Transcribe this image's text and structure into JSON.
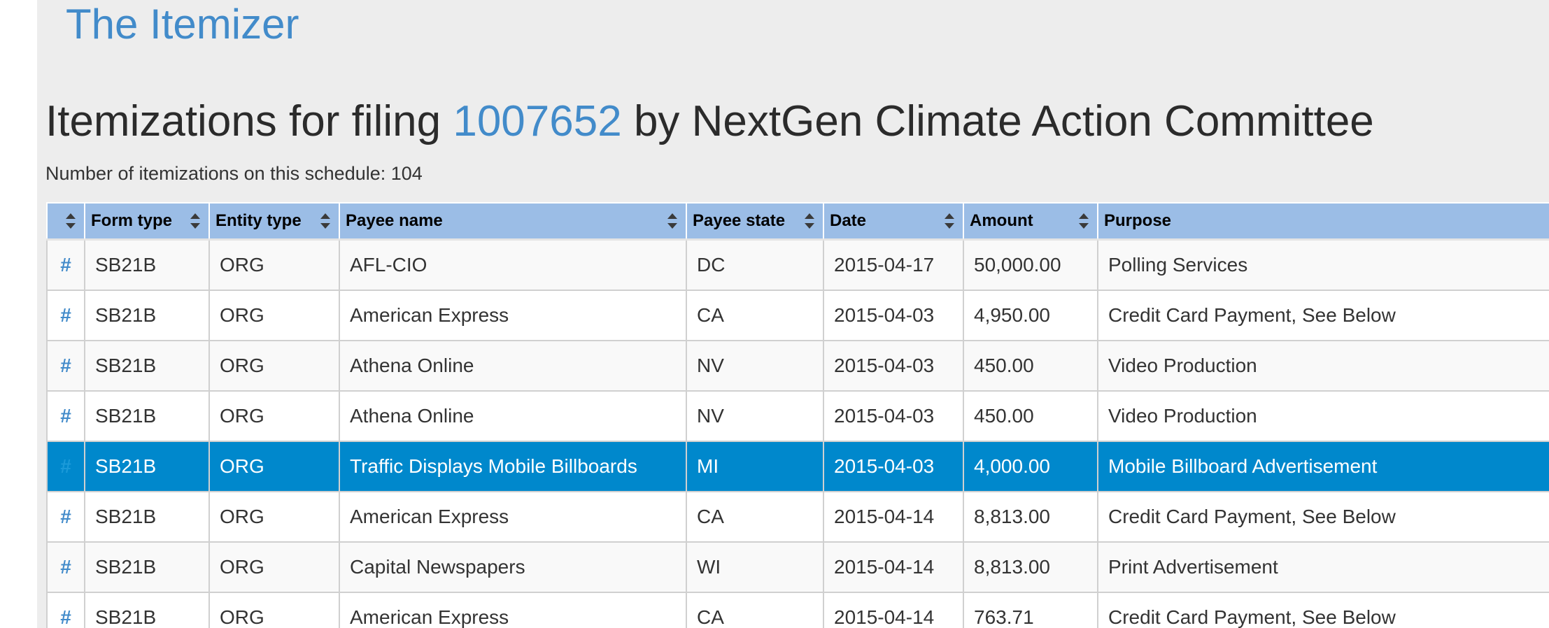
{
  "brand": "The Itemizer",
  "heading": {
    "prefix": "Itemizations for filing ",
    "filing_id": "1007652",
    "suffix": " by NextGen Climate Action Committee"
  },
  "count_text": "Number of itemizations on this schedule: 104",
  "colors": {
    "header_bg": "#9bbde6",
    "selected_row_bg": "#0088cc",
    "link": "#428bca",
    "page_bg": "#ededed"
  },
  "table": {
    "columns": [
      "",
      "Form type",
      "Entity type",
      "Payee name",
      "Payee state",
      "Date",
      "Amount",
      "Purpose"
    ],
    "link_symbol": "#",
    "selected_row_index": 4,
    "rows": [
      {
        "form_type": "SB21B",
        "entity_type": "ORG",
        "payee_name": "AFL-CIO",
        "payee_state": "DC",
        "date": "2015-04-17",
        "amount": "50,000.00",
        "purpose": "Polling Services"
      },
      {
        "form_type": "SB21B",
        "entity_type": "ORG",
        "payee_name": "American Express",
        "payee_state": "CA",
        "date": "2015-04-03",
        "amount": "4,950.00",
        "purpose": "Credit Card Payment, See Below"
      },
      {
        "form_type": "SB21B",
        "entity_type": "ORG",
        "payee_name": "Athena Online",
        "payee_state": "NV",
        "date": "2015-04-03",
        "amount": "450.00",
        "purpose": "Video Production"
      },
      {
        "form_type": "SB21B",
        "entity_type": "ORG",
        "payee_name": "Athena Online",
        "payee_state": "NV",
        "date": "2015-04-03",
        "amount": "450.00",
        "purpose": "Video Production"
      },
      {
        "form_type": "SB21B",
        "entity_type": "ORG",
        "payee_name": "Traffic Displays Mobile Billboards",
        "payee_state": "MI",
        "date": "2015-04-03",
        "amount": "4,000.00",
        "purpose": "Mobile Billboard Advertisement"
      },
      {
        "form_type": "SB21B",
        "entity_type": "ORG",
        "payee_name": "American Express",
        "payee_state": "CA",
        "date": "2015-04-14",
        "amount": "8,813.00",
        "purpose": "Credit Card Payment, See Below"
      },
      {
        "form_type": "SB21B",
        "entity_type": "ORG",
        "payee_name": "Capital Newspapers",
        "payee_state": "WI",
        "date": "2015-04-14",
        "amount": "8,813.00",
        "purpose": "Print Advertisement"
      },
      {
        "form_type": "SB21B",
        "entity_type": "ORG",
        "payee_name": "American Express",
        "payee_state": "CA",
        "date": "2015-04-14",
        "amount": "763.71",
        "purpose": "Credit Card Payment, See Below"
      }
    ]
  }
}
